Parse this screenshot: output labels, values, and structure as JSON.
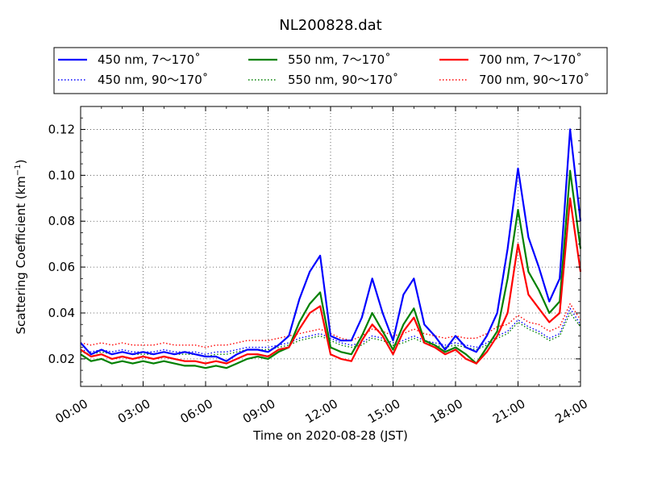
{
  "chart_data": {
    "type": "line",
    "title": "NL200828.dat",
    "xlabel": "Time on 2020-08-28 (JST)",
    "ylabel": "Scattering Coefficient (km",
    "ylabel_sup": "−1",
    "ylabel_end": ")",
    "xlim": [
      "00:00",
      "24:00"
    ],
    "ylim": [
      0.008,
      0.13
    ],
    "xticks": [
      "00:00",
      "03:00",
      "06:00",
      "09:00",
      "12:00",
      "15:00",
      "18:00",
      "21:00",
      "24:00"
    ],
    "yticks": [
      "0.02",
      "0.04",
      "0.06",
      "0.08",
      "0.10",
      "0.12"
    ],
    "grid": true,
    "legend_position": "top",
    "x": [
      "00:00",
      "00:30",
      "01:00",
      "01:30",
      "02:00",
      "02:30",
      "03:00",
      "03:30",
      "04:00",
      "04:30",
      "05:00",
      "05:30",
      "06:00",
      "06:30",
      "07:00",
      "07:30",
      "08:00",
      "08:30",
      "09:00",
      "09:30",
      "10:00",
      "10:30",
      "11:00",
      "11:30",
      "12:00",
      "12:30",
      "13:00",
      "13:30",
      "14:00",
      "14:30",
      "15:00",
      "15:30",
      "16:00",
      "16:30",
      "17:00",
      "17:30",
      "18:00",
      "18:30",
      "19:00",
      "19:30",
      "20:00",
      "20:30",
      "21:00",
      "21:30",
      "22:00",
      "22:30",
      "23:00",
      "23:30",
      "24:00"
    ],
    "series": [
      {
        "name": "450 nm, 7～170˚",
        "color": "#0000ff",
        "style": "solid",
        "values": [
          0.027,
          0.022,
          0.024,
          0.022,
          0.023,
          0.022,
          0.023,
          0.022,
          0.023,
          0.022,
          0.023,
          0.022,
          0.021,
          0.021,
          0.019,
          0.022,
          0.024,
          0.024,
          0.023,
          0.026,
          0.03,
          0.046,
          0.058,
          0.065,
          0.03,
          0.028,
          0.028,
          0.038,
          0.055,
          0.04,
          0.028,
          0.048,
          0.055,
          0.035,
          0.03,
          0.024,
          0.03,
          0.025,
          0.023,
          0.03,
          0.04,
          0.068,
          0.103,
          0.073,
          0.06,
          0.045,
          0.055,
          0.12,
          0.08
        ]
      },
      {
        "name": "550 nm, 7～170˚",
        "color": "#008000",
        "style": "solid",
        "values": [
          0.022,
          0.019,
          0.02,
          0.018,
          0.019,
          0.018,
          0.019,
          0.018,
          0.019,
          0.018,
          0.017,
          0.017,
          0.016,
          0.017,
          0.016,
          0.018,
          0.02,
          0.021,
          0.02,
          0.023,
          0.025,
          0.036,
          0.044,
          0.049,
          0.025,
          0.023,
          0.022,
          0.03,
          0.04,
          0.032,
          0.024,
          0.035,
          0.042,
          0.028,
          0.026,
          0.023,
          0.025,
          0.022,
          0.018,
          0.025,
          0.032,
          0.055,
          0.085,
          0.058,
          0.05,
          0.04,
          0.045,
          0.102,
          0.068
        ]
      },
      {
        "name": "700 nm, 7～170˚",
        "color": "#ff0000",
        "style": "solid",
        "values": [
          0.024,
          0.021,
          0.022,
          0.02,
          0.021,
          0.02,
          0.021,
          0.02,
          0.021,
          0.02,
          0.019,
          0.019,
          0.018,
          0.019,
          0.018,
          0.02,
          0.022,
          0.022,
          0.021,
          0.024,
          0.025,
          0.033,
          0.04,
          0.043,
          0.022,
          0.02,
          0.019,
          0.028,
          0.035,
          0.03,
          0.022,
          0.032,
          0.038,
          0.027,
          0.025,
          0.022,
          0.024,
          0.02,
          0.018,
          0.023,
          0.03,
          0.04,
          0.07,
          0.048,
          0.042,
          0.036,
          0.04,
          0.09,
          0.058
        ]
      },
      {
        "name": "450 nm, 90～170˚",
        "color": "#0000ff",
        "style": "dotted",
        "values": [
          0.024,
          0.023,
          0.024,
          0.023,
          0.024,
          0.023,
          0.023,
          0.023,
          0.024,
          0.023,
          0.023,
          0.023,
          0.022,
          0.023,
          0.023,
          0.024,
          0.025,
          0.025,
          0.025,
          0.026,
          0.027,
          0.029,
          0.03,
          0.031,
          0.029,
          0.027,
          0.026,
          0.027,
          0.03,
          0.029,
          0.027,
          0.028,
          0.03,
          0.028,
          0.027,
          0.026,
          0.027,
          0.026,
          0.025,
          0.027,
          0.03,
          0.032,
          0.037,
          0.034,
          0.032,
          0.029,
          0.031,
          0.042,
          0.035
        ]
      },
      {
        "name": "550 nm, 90～170˚",
        "color": "#008000",
        "style": "dotted",
        "values": [
          0.023,
          0.022,
          0.023,
          0.022,
          0.023,
          0.022,
          0.022,
          0.022,
          0.023,
          0.022,
          0.022,
          0.022,
          0.021,
          0.022,
          0.022,
          0.023,
          0.024,
          0.024,
          0.024,
          0.025,
          0.026,
          0.028,
          0.029,
          0.03,
          0.028,
          0.026,
          0.025,
          0.026,
          0.029,
          0.028,
          0.026,
          0.027,
          0.029,
          0.027,
          0.026,
          0.025,
          0.026,
          0.025,
          0.024,
          0.026,
          0.029,
          0.031,
          0.036,
          0.033,
          0.031,
          0.028,
          0.03,
          0.04,
          0.034
        ]
      },
      {
        "name": "700 nm, 90～170˚",
        "color": "#ff0000",
        "style": "dotted",
        "values": [
          0.027,
          0.026,
          0.027,
          0.026,
          0.027,
          0.026,
          0.026,
          0.026,
          0.027,
          0.026,
          0.026,
          0.026,
          0.025,
          0.026,
          0.026,
          0.027,
          0.028,
          0.028,
          0.028,
          0.029,
          0.03,
          0.031,
          0.032,
          0.033,
          0.031,
          0.029,
          0.028,
          0.03,
          0.033,
          0.032,
          0.03,
          0.031,
          0.033,
          0.031,
          0.03,
          0.029,
          0.03,
          0.029,
          0.029,
          0.031,
          0.034,
          0.035,
          0.039,
          0.036,
          0.035,
          0.032,
          0.034,
          0.044,
          0.037
        ]
      }
    ]
  }
}
